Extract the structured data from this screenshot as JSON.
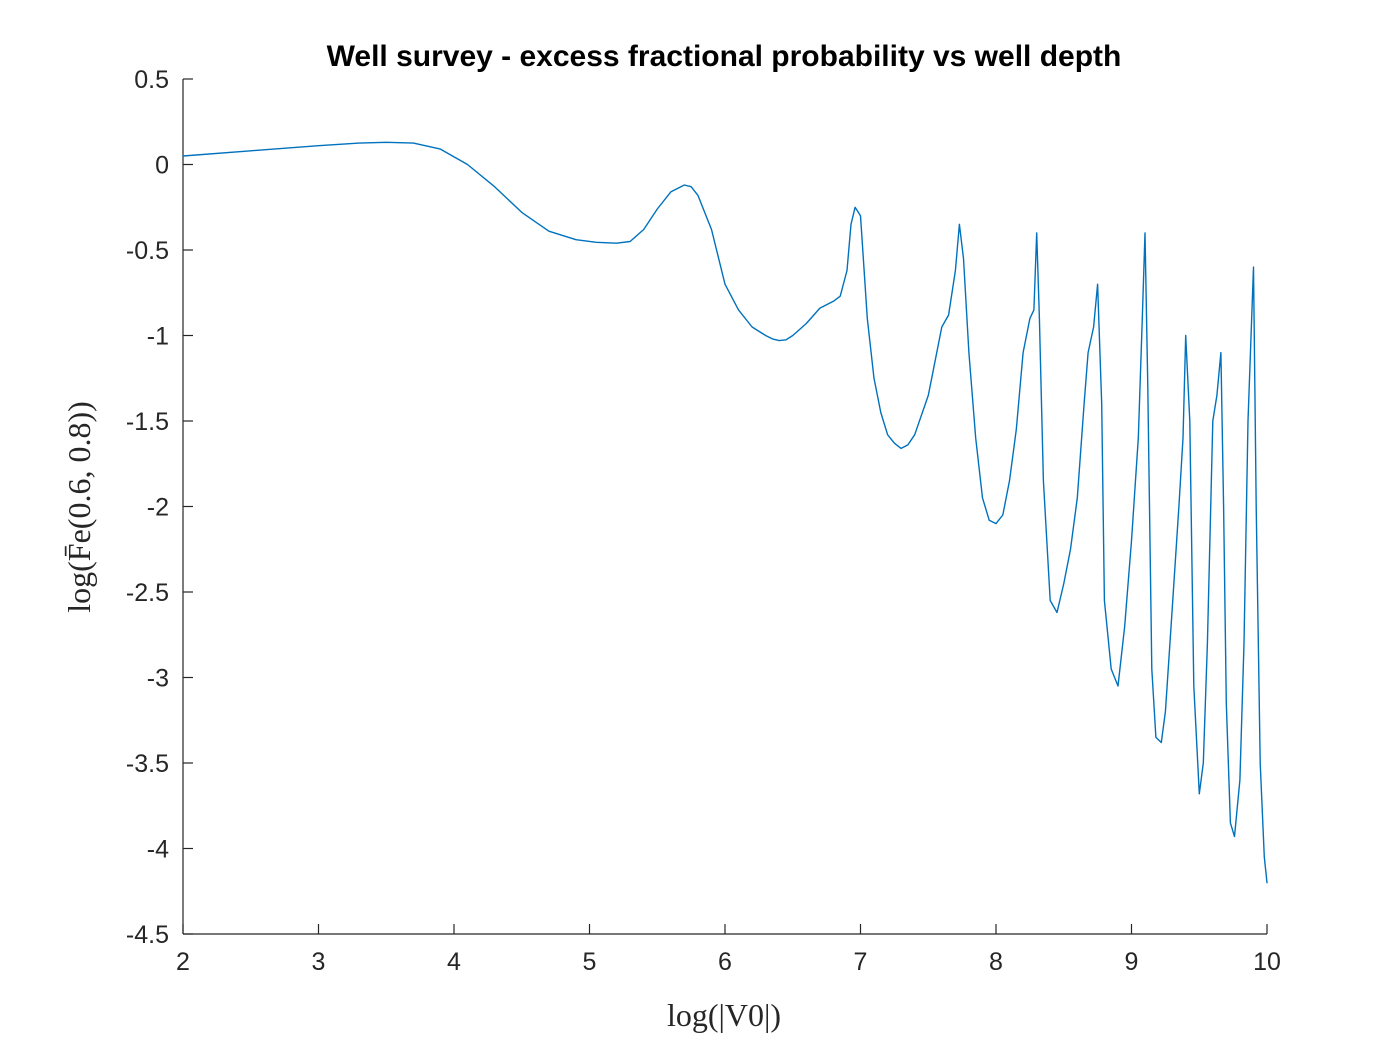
{
  "chart_data": {
    "type": "line",
    "title": "Well survey - excess fractional probability vs well depth",
    "xlabel": "log(|V0|)",
    "ylabel": "log(F̄e(0.6, 0.8))",
    "xlim": [
      2,
      10
    ],
    "ylim": [
      -4.5,
      0.5
    ],
    "xticks": [
      2,
      3,
      4,
      5,
      6,
      7,
      8,
      9,
      10
    ],
    "yticks": [
      0.5,
      0,
      -0.5,
      -1,
      -1.5,
      -2,
      -2.5,
      -3,
      -3.5,
      -4,
      -4.5
    ],
    "xtick_labels": [
      "2",
      "3",
      "4",
      "5",
      "6",
      "7",
      "8",
      "9",
      "10"
    ],
    "ytick_labels": [
      "0.5",
      "0",
      "-0.5",
      "-1",
      "-1.5",
      "-2",
      "-2.5",
      "-3",
      "-3.5",
      "-4",
      "-4.5"
    ],
    "grid": false,
    "legend": "none",
    "line_color": "#0072bd",
    "series": [
      {
        "x": [
          2.0,
          2.5,
          3.0,
          3.3,
          3.5,
          3.7,
          3.9,
          4.1,
          4.3,
          4.5,
          4.7,
          4.9,
          5.05,
          5.2,
          5.3,
          5.4,
          5.5,
          5.6,
          5.7,
          5.75,
          5.8,
          5.9,
          6.0,
          6.1,
          6.2,
          6.3,
          6.35,
          6.4,
          6.45,
          6.5,
          6.6,
          6.7,
          6.8,
          6.85,
          6.9,
          6.93,
          6.96,
          7.0,
          7.05,
          7.1,
          7.15,
          7.2,
          7.25,
          7.3,
          7.35,
          7.4,
          7.5,
          7.6,
          7.65,
          7.7,
          7.73,
          7.76,
          7.8,
          7.85,
          7.9,
          7.95,
          8.0,
          8.05,
          8.1,
          8.15,
          8.2,
          8.25,
          8.28,
          8.3,
          8.32,
          8.35,
          8.4,
          8.45,
          8.5,
          8.55,
          8.6,
          8.65,
          8.68,
          8.72,
          8.75,
          8.78,
          8.8,
          8.85,
          8.9,
          8.95,
          9.0,
          9.05,
          9.08,
          9.1,
          9.12,
          9.15,
          9.18,
          9.22,
          9.25,
          9.3,
          9.35,
          9.38,
          9.4,
          9.43,
          9.46,
          9.5,
          9.53,
          9.56,
          9.6,
          9.63,
          9.66,
          9.68,
          9.7,
          9.73,
          9.76,
          9.8,
          9.83,
          9.86,
          9.9,
          9.92,
          9.95,
          9.98,
          10.0
        ],
        "y": [
          0.05,
          0.08,
          0.11,
          0.125,
          0.13,
          0.125,
          0.09,
          0.0,
          -0.13,
          -0.28,
          -0.39,
          -0.44,
          -0.455,
          -0.46,
          -0.45,
          -0.38,
          -0.26,
          -0.16,
          -0.12,
          -0.13,
          -0.18,
          -0.38,
          -0.7,
          -0.85,
          -0.95,
          -1.0,
          -1.02,
          -1.03,
          -1.025,
          -1.0,
          -0.93,
          -0.84,
          -0.8,
          -0.77,
          -0.62,
          -0.35,
          -0.25,
          -0.3,
          -0.9,
          -1.25,
          -1.45,
          -1.58,
          -1.63,
          -1.66,
          -1.64,
          -1.58,
          -1.35,
          -0.95,
          -0.88,
          -0.62,
          -0.35,
          -0.55,
          -1.1,
          -1.6,
          -1.95,
          -2.08,
          -2.1,
          -2.05,
          -1.85,
          -1.55,
          -1.1,
          -0.9,
          -0.85,
          -0.4,
          -0.9,
          -1.85,
          -2.55,
          -2.62,
          -2.45,
          -2.25,
          -1.95,
          -1.4,
          -1.1,
          -0.95,
          -0.7,
          -1.4,
          -2.55,
          -2.95,
          -3.05,
          -2.7,
          -2.2,
          -1.6,
          -0.9,
          -0.4,
          -1.3,
          -2.95,
          -3.35,
          -3.38,
          -3.2,
          -2.6,
          -2.0,
          -1.6,
          -1.0,
          -1.5,
          -3.05,
          -3.68,
          -3.5,
          -2.8,
          -1.5,
          -1.35,
          -1.1,
          -2.0,
          -3.15,
          -3.85,
          -3.93,
          -3.6,
          -2.8,
          -1.5,
          -0.6,
          -2.0,
          -3.5,
          -4.05,
          -4.2
        ]
      }
    ]
  }
}
